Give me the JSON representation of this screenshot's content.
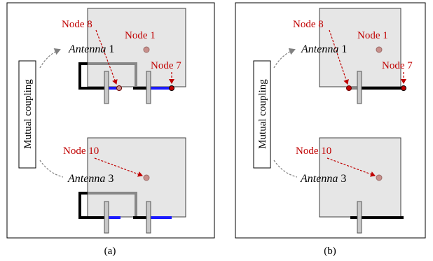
{
  "colors": {
    "node_label": "#c00000",
    "patch_fill": "#e6e6e6",
    "patch_stroke": "#404040",
    "feed_gray": "#808080",
    "feed_blue": "#1a1aff",
    "dot_fill": "#c8908c",
    "node_dot_dark": "#8b0000"
  },
  "coupling_label": "Mutual coupling",
  "panels": [
    {
      "caption": "(a)",
      "antenna_top": {
        "italic": "Antenna",
        "number": "1"
      },
      "antenna_bottom": {
        "italic": "Antenna",
        "number": "3"
      },
      "nodes": {
        "top_center": "Node 1",
        "top_left": "Node 8",
        "top_right": "Node 7",
        "bottom": "Node 10"
      }
    },
    {
      "caption": "(b)",
      "antenna_top": {
        "italic": "Antenna",
        "number": "1"
      },
      "antenna_bottom": {
        "italic": "Antenna",
        "number": "3"
      },
      "nodes": {
        "top_center": "Node 1",
        "top_left": "Node 8",
        "top_right": "Node 7",
        "bottom": "Node 10"
      }
    }
  ]
}
